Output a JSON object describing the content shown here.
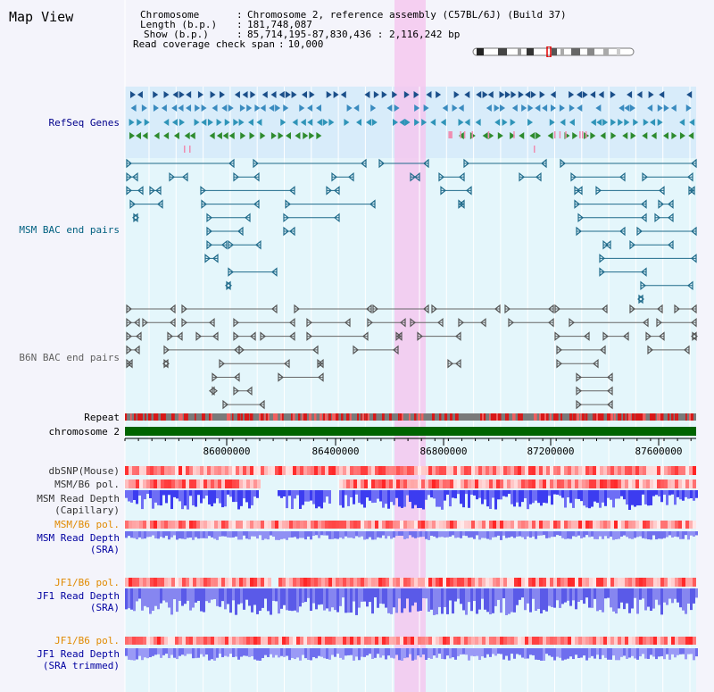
{
  "header": {
    "title": "Map View",
    "chromosome_label": "Chromosome",
    "chromosome_value": "Chromosome 2, reference assembly (C57BL/6J) (Build 37)",
    "length_label": "Length (b.p.)",
    "length_value": "181,748,087",
    "show_label": "Show (b.p.)",
    "show_value": "85,714,195-87,830,436 : 2,116,242 bp",
    "read_coverage_label": "Read coverage check span",
    "read_coverage_value": "10,000"
  },
  "tracks": {
    "refseq": "RefSeq Genes",
    "msm_bac": "MSM BAC end pairs",
    "b6n_bac": "B6N BAC end pairs",
    "repeat": "Repeat",
    "chromosome": "chromosome 2",
    "dbsnp": "dbSNP(Mouse)",
    "msm_b6_pol_1": "MSM/B6 pol.",
    "msm_read_depth_cap_1": "MSM Read Depth",
    "msm_read_depth_cap_2": "(Capillary)",
    "msm_b6_pol_2": "MSM/B6 pol.",
    "msm_read_depth_sra_1": "MSM Read Depth",
    "msm_read_depth_sra_2": "(SRA)",
    "jf1_b6_pol_1": "JF1/B6 pol.",
    "jf1_read_depth_sra_1": "JF1 Read Depth",
    "jf1_read_depth_sra_2": "(SRA)",
    "jf1_b6_pol_2": "JF1/B6 pol.",
    "jf1_read_depth_trim_1": "JF1 Read Depth",
    "jf1_read_depth_trim_2": "(SRA trimmed)"
  },
  "axis": {
    "ticks": [
      "86000000",
      "86400000",
      "86800000",
      "87200000",
      "87600000"
    ]
  },
  "colors": {
    "refseq_label": "#00008b",
    "msm_label": "#006080",
    "b6n_label": "#606060",
    "pol_label": "#e08a00",
    "depth_label": "#0000a0",
    "highlight": "#f5c8ef"
  }
}
